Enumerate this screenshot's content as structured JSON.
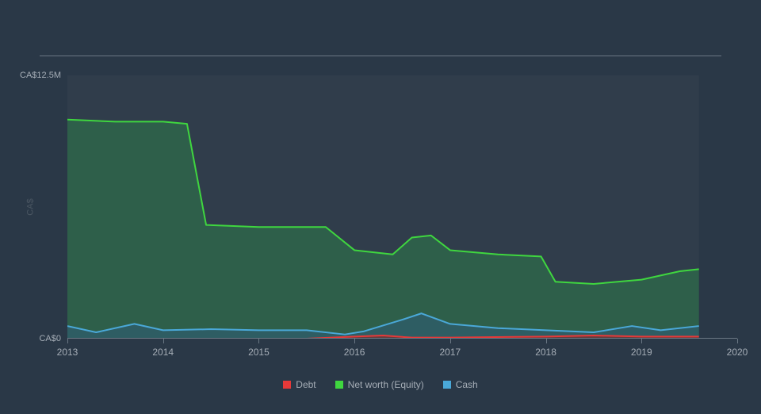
{
  "chart": {
    "type": "area",
    "background_color": "#2a3847",
    "plot_background_color": "#303d4b",
    "grid_color": "#6a7784",
    "text_color": "#a5adb6",
    "label_fontsize": 11,
    "xlim": [
      2013,
      2020
    ],
    "ylim": [
      0,
      12.5
    ],
    "x_ticks": [
      2013,
      2014,
      2015,
      2016,
      2017,
      2018,
      2019,
      2020
    ],
    "y_ticks": [
      {
        "value": 0,
        "label": "CA$0"
      },
      {
        "value": 12.5,
        "label": "CA$12.5M"
      }
    ],
    "y_axis_title": "CA$",
    "series": [
      {
        "name": "Net worth (Equity)",
        "color_stroke": "#3fd63f",
        "color_fill": "#2d6b4a",
        "fill_opacity": 0.75,
        "stroke_width": 2,
        "data": [
          {
            "x": 2013.0,
            "y": 10.4
          },
          {
            "x": 2013.5,
            "y": 10.3
          },
          {
            "x": 2014.0,
            "y": 10.3
          },
          {
            "x": 2014.25,
            "y": 10.2
          },
          {
            "x": 2014.45,
            "y": 5.4
          },
          {
            "x": 2015.0,
            "y": 5.3
          },
          {
            "x": 2015.7,
            "y": 5.3
          },
          {
            "x": 2016.0,
            "y": 4.2
          },
          {
            "x": 2016.4,
            "y": 4.0
          },
          {
            "x": 2016.6,
            "y": 4.8
          },
          {
            "x": 2016.8,
            "y": 4.9
          },
          {
            "x": 2017.0,
            "y": 4.2
          },
          {
            "x": 2017.5,
            "y": 4.0
          },
          {
            "x": 2017.95,
            "y": 3.9
          },
          {
            "x": 2018.1,
            "y": 2.7
          },
          {
            "x": 2018.5,
            "y": 2.6
          },
          {
            "x": 2019.0,
            "y": 2.8
          },
          {
            "x": 2019.4,
            "y": 3.2
          },
          {
            "x": 2019.6,
            "y": 3.3
          }
        ]
      },
      {
        "name": "Cash",
        "color_stroke": "#4aa8d8",
        "color_fill": "#2f5d6e",
        "fill_opacity": 0.7,
        "stroke_width": 2,
        "data": [
          {
            "x": 2013.0,
            "y": 0.6
          },
          {
            "x": 2013.3,
            "y": 0.3
          },
          {
            "x": 2013.7,
            "y": 0.7
          },
          {
            "x": 2014.0,
            "y": 0.4
          },
          {
            "x": 2014.5,
            "y": 0.45
          },
          {
            "x": 2015.0,
            "y": 0.4
          },
          {
            "x": 2015.5,
            "y": 0.4
          },
          {
            "x": 2015.9,
            "y": 0.2
          },
          {
            "x": 2016.1,
            "y": 0.35
          },
          {
            "x": 2016.5,
            "y": 0.9
          },
          {
            "x": 2016.7,
            "y": 1.2
          },
          {
            "x": 2017.0,
            "y": 0.7
          },
          {
            "x": 2017.5,
            "y": 0.5
          },
          {
            "x": 2018.0,
            "y": 0.4
          },
          {
            "x": 2018.5,
            "y": 0.3
          },
          {
            "x": 2018.9,
            "y": 0.6
          },
          {
            "x": 2019.2,
            "y": 0.4
          },
          {
            "x": 2019.6,
            "y": 0.6
          }
        ]
      },
      {
        "name": "Debt",
        "color_stroke": "#e63939",
        "color_fill": "#7a2f2f",
        "fill_opacity": 0.7,
        "stroke_width": 2,
        "data": [
          {
            "x": 2013.0,
            "y": 0.0
          },
          {
            "x": 2015.5,
            "y": 0.0
          },
          {
            "x": 2016.0,
            "y": 0.1
          },
          {
            "x": 2016.3,
            "y": 0.15
          },
          {
            "x": 2016.6,
            "y": 0.05
          },
          {
            "x": 2017.0,
            "y": 0.05
          },
          {
            "x": 2018.0,
            "y": 0.1
          },
          {
            "x": 2018.5,
            "y": 0.15
          },
          {
            "x": 2019.0,
            "y": 0.1
          },
          {
            "x": 2019.6,
            "y": 0.1
          }
        ]
      }
    ],
    "legend_order": [
      "Debt",
      "Net worth (Equity)",
      "Cash"
    ],
    "legend_colors": {
      "Debt": "#e63939",
      "Net worth (Equity)": "#3fd63f",
      "Cash": "#4aa8d8"
    }
  }
}
